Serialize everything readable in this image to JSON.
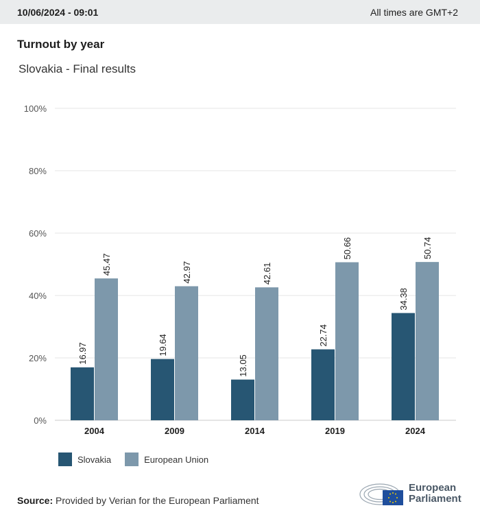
{
  "header": {
    "date": "10/06/2024 - 09:01",
    "timezone_note": "All times are GMT+2"
  },
  "title": "Turnout by year",
  "subtitle": "Slovakia - Final results",
  "colors": {
    "slovakia": "#275673",
    "eu": "#7d98ab",
    "grid": "#e4e4e4",
    "axis": "#c8c8c8"
  },
  "chart_data": {
    "type": "bar",
    "categories": [
      "2004",
      "2009",
      "2014",
      "2019",
      "2024"
    ],
    "series": [
      {
        "name": "Slovakia",
        "values": [
          16.97,
          19.64,
          13.05,
          22.74,
          34.38
        ]
      },
      {
        "name": "European Union",
        "values": [
          45.47,
          42.97,
          42.61,
          50.66,
          50.74
        ]
      }
    ],
    "value_labels": {
      "Slovakia": [
        "16.97",
        "19.64",
        "13.05",
        "22.74",
        "34.38"
      ],
      "European Union": [
        "45.47",
        "42.97",
        "42.61",
        "50.66",
        "50.74"
      ]
    },
    "ylim": [
      0,
      100
    ],
    "yticks": [
      0,
      20,
      40,
      60,
      80,
      100
    ],
    "ytick_labels": [
      "0%",
      "20%",
      "40%",
      "60%",
      "80%",
      "100%"
    ],
    "xlabel": "",
    "ylabel": "",
    "legend": "bottom-left"
  },
  "legend": {
    "slovakia": "Slovakia",
    "eu": "European Union"
  },
  "source": {
    "label": "Source:",
    "text": "Provided by Verian for the European Parliament"
  },
  "logo": {
    "line1": "European",
    "line2": "Parliament"
  }
}
